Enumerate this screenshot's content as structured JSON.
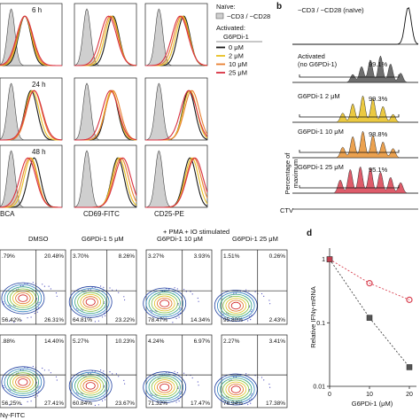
{
  "panel_a": {
    "rows": [
      "6 h",
      "24 h",
      "48 h"
    ],
    "x_labels": [
      "BCA",
      "CD69-FITC",
      "CD25-PE"
    ],
    "legend": {
      "naive_title": "Naïve:",
      "naive_item": "−CD3 / −CD28",
      "activated_title": "Activated:",
      "treatment_header": "G6PDi-1",
      "items": [
        "0 μM",
        "2 μM",
        "10 μM",
        "25 μM"
      ]
    },
    "colors": [
      "#1a1a1a",
      "#e8c020",
      "#e88030",
      "#d83040"
    ],
    "naive_fill": "#cfcfcf"
  },
  "panel_b": {
    "letter": "b",
    "header": "−CD3 / −CD28 (naïve)",
    "rows": [
      {
        "label": "Activated\n(no G6PDi-1)",
        "line1": "Activated",
        "line2": "(no G6PDi-1)",
        "pct": "99.1%",
        "color": "#555555"
      },
      {
        "label": "G6PDi-1 2 μM",
        "line1": "G6PDi-1 2 μM",
        "line2": "",
        "pct": "99.3%",
        "color": "#e8c020"
      },
      {
        "label": "G6PDi-1 10 μM",
        "line1": "G6PDi-1 10 μM",
        "line2": "",
        "pct": "98.8%",
        "color": "#e89030"
      },
      {
        "label": "G6PDi-1 25 μM",
        "line1": "G6PDi-1 25 μM",
        "line2": "",
        "pct": "95.1%",
        "color": "#d84050"
      }
    ],
    "ylabel_1": "Percentage of",
    "ylabel_2": "maximum",
    "xlabel": "CTV"
  },
  "panel_c": {
    "stim_label": "+ PMA + IO stimulated",
    "columns": [
      "DMSO",
      "G6PDi-1 5 μM",
      "G6PDi-1 10 μM",
      "G6PDi-1 25 μM"
    ],
    "row1": [
      {
        "tl": ".79%",
        "tr": "20.48%",
        "bl": "56.42%",
        "br": "26.31%"
      },
      {
        "tl": "3.70%",
        "tr": "8.26%",
        "bl": "64.81%",
        "br": "23.22%"
      },
      {
        "tl": "3.27%",
        "tr": "3.93%",
        "bl": "78.47%",
        "br": "14.34%"
      },
      {
        "tl": "1.51%",
        "tr": "0.26%",
        "bl": "95.80%",
        "br": "2.43%"
      }
    ],
    "row2": [
      {
        "tl": ".88%",
        "tr": "14.40%",
        "bl": "56.25%",
        "br": "27.41%"
      },
      {
        "tl": "5.27%",
        "tr": "10.23%",
        "bl": "60.84%",
        "br": "23.67%"
      },
      {
        "tl": "4.24%",
        "tr": "6.97%",
        "bl": "71.32%",
        "br": "17.47%"
      },
      {
        "tl": "2.27%",
        "tr": "3.41%",
        "bl": "76.94%",
        "br": "17.38%"
      }
    ],
    "xlabel": "Nγ-FITC"
  },
  "panel_d": {
    "letter": "d",
    "chart_data": {
      "type": "line",
      "x": [
        0,
        10,
        20
      ],
      "xlabel": "G6PDi-1 (μM)",
      "ylabel": "Relative IFNγ-mRNA",
      "y_scale": "log",
      "ylim": [
        0.01,
        1.5
      ],
      "x_ticks": [
        "0",
        "10",
        "20"
      ],
      "y_ticks": [
        "1",
        "0.1",
        "0.01"
      ],
      "series": [
        {
          "values": [
            1.0,
            0.42,
            0.23
          ],
          "color": "#d84050"
        },
        {
          "values": [
            1.0,
            0.12,
            0.02
          ],
          "color": "#444444"
        }
      ]
    }
  }
}
